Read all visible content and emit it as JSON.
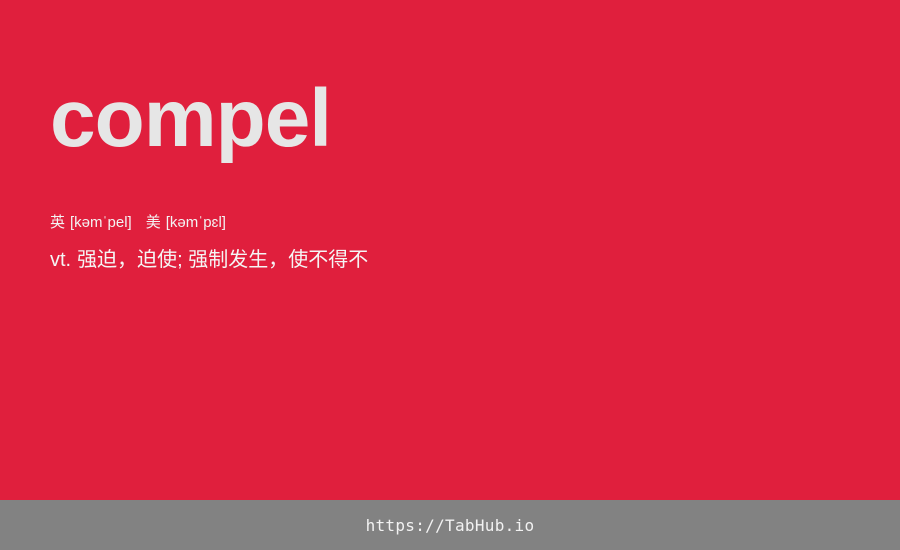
{
  "card": {
    "background_color": "#e01f3d",
    "word": "compel",
    "phonetics": {
      "uk_label": "英",
      "uk_ipa": "[kəmˈpel]",
      "us_label": "美",
      "us_ipa": "[kəmˈpɛl]"
    },
    "definition": {
      "part_of_speech": "vt.",
      "meaning": "强迫，迫使; 强制发生，使不得不"
    }
  },
  "footer": {
    "background_color": "#828282",
    "link_text": "https://TabHub.io"
  }
}
